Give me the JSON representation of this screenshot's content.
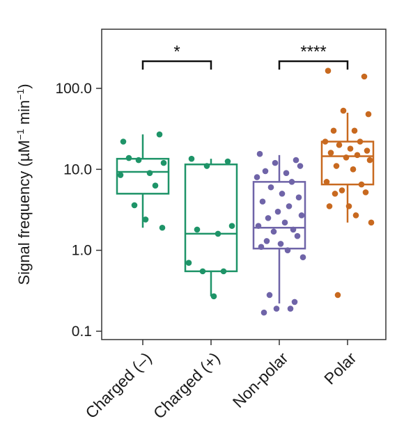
{
  "chart_data": {
    "type": "box",
    "y_scale": "log",
    "ylabel": "Signal frequency (µM",
    "ylabel_sup1": "−1",
    "ylabel_mid": " min",
    "ylabel_sup2": "−1",
    "ylabel_end": ")",
    "ylim": [
      0.08,
      400
    ],
    "yticks": [
      {
        "value": 0.1,
        "label": "0.1"
      },
      {
        "value": 1.0,
        "label": "1.0"
      },
      {
        "value": 10.0,
        "label": "10.0"
      },
      {
        "value": 100.0,
        "label": "100.0"
      }
    ],
    "categories": [
      "Charged (–)",
      "Charged (+)",
      "Non-polar",
      "Polar"
    ],
    "groups": [
      {
        "category": "Charged (–)",
        "color": "#1e9468",
        "whisker_low": 1.9,
        "q1": 5.0,
        "median": 9.3,
        "q3": 13.5,
        "whisker_high": 27.0,
        "points": [
          22.0,
          27.0,
          13.0,
          12.0,
          13.8,
          9.0,
          8.5,
          6.3,
          3.6,
          2.4,
          1.9
        ]
      },
      {
        "category": "Charged (+)",
        "color": "#1e9468",
        "whisker_low": 0.27,
        "q1": 0.55,
        "median": 1.6,
        "q3": 11.5,
        "whisker_high": 13.5,
        "points": [
          13.5,
          12.5,
          11.0,
          2.0,
          1.8,
          1.6,
          0.7,
          0.55,
          0.55,
          0.27
        ]
      },
      {
        "category": "Non-polar",
        "color": "#6f64a8",
        "whisker_low": 0.22,
        "q1": 1.05,
        "median": 1.9,
        "q3": 7.0,
        "whisker_high": 15.0,
        "points": [
          15.5,
          13.0,
          12.0,
          11.0,
          9.5,
          9.0,
          8.0,
          7.0,
          6.0,
          5.0,
          4.5,
          4.0,
          3.5,
          3.0,
          2.7,
          2.5,
          2.2,
          2.0,
          1.8,
          1.7,
          1.5,
          1.3,
          1.2,
          1.1,
          1.0,
          0.82,
          0.28,
          0.23,
          0.19,
          0.19,
          0.17
        ]
      },
      {
        "category": "Polar",
        "color": "#c8691f",
        "whisker_low": 2.2,
        "q1": 6.5,
        "median": 14.5,
        "q3": 22.0,
        "whisker_high": 50.0,
        "points": [
          165.0,
          140.0,
          53.0,
          48.0,
          30.0,
          30.0,
          22.0,
          22.0,
          20.0,
          18.0,
          17.0,
          16.0,
          15.0,
          14.0,
          13.0,
          11.0,
          10.0,
          7.0,
          6.5,
          5.5,
          5.2,
          5.0,
          3.5,
          3.5,
          2.7,
          2.2,
          0.28
        ]
      }
    ],
    "significance": [
      {
        "from": "Charged (–)",
        "to": "Charged (+)",
        "label": "*"
      },
      {
        "from": "Non-polar",
        "to": "Polar",
        "label": "****"
      }
    ],
    "grid": false,
    "legend": "none"
  }
}
